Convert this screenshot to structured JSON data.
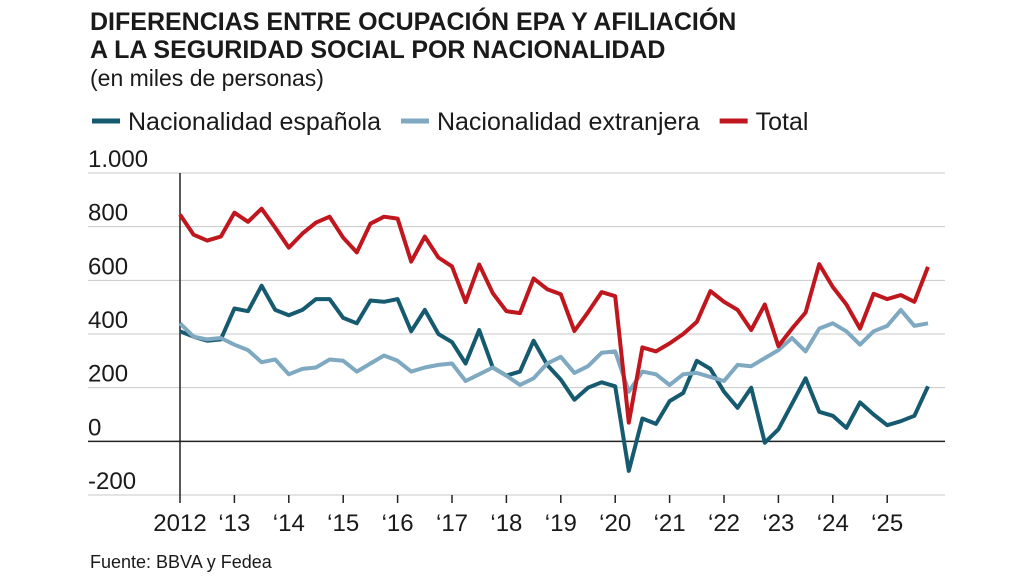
{
  "chart_data": {
    "type": "line",
    "title": "DIFERENCIAS ENTRE OCUPACIÓN EPA Y AFILIACIÓN",
    "title_line2": "A LA SEGURIDAD SOCIAL POR NACIONALIDAD",
    "subtitle": "(en miles de personas)",
    "source": "Fuente: BBVA y Fedea",
    "x": [
      2012,
      2012.25,
      2012.5,
      2012.75,
      2013,
      2013.25,
      2013.5,
      2013.75,
      2014,
      2014.25,
      2014.5,
      2014.75,
      2015,
      2015.25,
      2015.5,
      2015.75,
      2016,
      2016.25,
      2016.5,
      2016.75,
      2017,
      2017.25,
      2017.5,
      2017.75,
      2018,
      2018.25,
      2018.5,
      2018.75,
      2019,
      2019.25,
      2019.5,
      2019.75,
      2020,
      2020.25,
      2020.5,
      2020.75,
      2021,
      2021.25,
      2021.5,
      2021.75,
      2022,
      2022.25,
      2022.5,
      2022.75,
      2023,
      2023.25,
      2023.5,
      2023.75,
      2024,
      2024.25,
      2024.5,
      2024.75,
      2025,
      2025.25,
      2025.5,
      2025.75
    ],
    "series": [
      {
        "name": "Nacionalidad española",
        "color": "#165a70",
        "values": [
          410,
          390,
          375,
          380,
          495,
          485,
          580,
          490,
          470,
          490,
          530,
          530,
          460,
          440,
          525,
          520,
          530,
          410,
          490,
          400,
          370,
          290,
          415,
          275,
          245,
          260,
          375,
          285,
          230,
          155,
          200,
          220,
          205,
          -110,
          85,
          65,
          150,
          180,
          300,
          270,
          185,
          125,
          200,
          -5,
          45,
          140,
          235,
          110,
          95,
          50,
          145,
          100,
          60,
          75,
          95,
          205
        ]
      },
      {
        "name": "Nacionalidad extranjera",
        "color": "#7fa9c0",
        "values": [
          440,
          390,
          380,
          385,
          360,
          340,
          295,
          305,
          250,
          270,
          275,
          305,
          300,
          260,
          290,
          320,
          300,
          260,
          275,
          285,
          290,
          225,
          250,
          275,
          245,
          210,
          235,
          290,
          315,
          255,
          280,
          330,
          335,
          185,
          260,
          250,
          210,
          250,
          255,
          240,
          225,
          285,
          280,
          310,
          340,
          385,
          335,
          420,
          440,
          410,
          360,
          410,
          430,
          490,
          430,
          440
        ]
      },
      {
        "name": "Total",
        "color": "#c0161d",
        "values": [
          845,
          770,
          748,
          763,
          852,
          818,
          867,
          796,
          722,
          774,
          815,
          837,
          759,
          704,
          811,
          837,
          830,
          670,
          763,
          685,
          652,
          519,
          659,
          552,
          485,
          478,
          607,
          567,
          548,
          411,
          481,
          556,
          541,
          70,
          350,
          335,
          365,
          400,
          445,
          560,
          520,
          490,
          415,
          510,
          355,
          420,
          480,
          660,
          575,
          510,
          420,
          550,
          530,
          545,
          520,
          650
        ]
      }
    ],
    "xlim": [
      2012,
      2025.75
    ],
    "xticks": [
      2012,
      {
        "value": 2013,
        "label": "‘13"
      },
      {
        "value": 2014,
        "label": "‘14"
      },
      {
        "value": 2015,
        "label": "‘15"
      },
      {
        "value": 2016,
        "label": "‘16"
      },
      {
        "value": 2017,
        "label": "‘17"
      },
      {
        "value": 2018,
        "label": "‘18"
      },
      {
        "value": 2019,
        "label": "‘19"
      },
      {
        "value": 2020,
        "label": "‘20"
      },
      {
        "value": 2021,
        "label": "‘21"
      },
      {
        "value": 2022,
        "label": "‘22"
      },
      {
        "value": 2023,
        "label": "‘23"
      },
      {
        "value": 2024,
        "label": "‘24"
      },
      {
        "value": 2025,
        "label": "‘25"
      }
    ],
    "ylim": [
      -200,
      1000
    ],
    "yticks": [
      -200,
      0,
      200,
      400,
      600,
      800,
      {
        "value": 1000,
        "label": "1.000"
      }
    ],
    "grid": true
  }
}
